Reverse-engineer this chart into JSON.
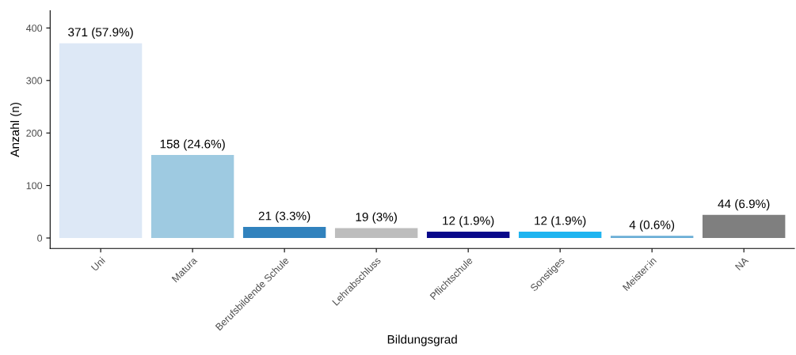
{
  "chart_data": {
    "type": "bar",
    "xlabel": "Bildungsgrad",
    "ylabel": "Anzahl (n)",
    "categories": [
      "Uni",
      "Matura",
      "Berufsbildende Schule",
      "Lehrabschluss",
      "Pflichtschule",
      "Sonstiges",
      "Meister:in",
      "NA"
    ],
    "values": [
      371,
      158,
      21,
      19,
      12,
      12,
      4,
      44
    ],
    "colors": [
      "#dde8f6",
      "#9ecae1",
      "#3182bd",
      "#bdbdbd",
      "#08088a",
      "#1eb4f0",
      "#6aaed6",
      "#7f7f7f"
    ],
    "value_labels": [
      "371 (57.9%)",
      "158 (24.6%)",
      "21 (3.3%)",
      "19 (3%)",
      "12 (1.9%)",
      "12 (1.9%)",
      "4 (0.6%)",
      "44 (6.9%)"
    ],
    "ylim": [
      -20,
      433
    ],
    "yticks": [
      0,
      100,
      200,
      300,
      400
    ],
    "grid": false,
    "legend": false
  }
}
